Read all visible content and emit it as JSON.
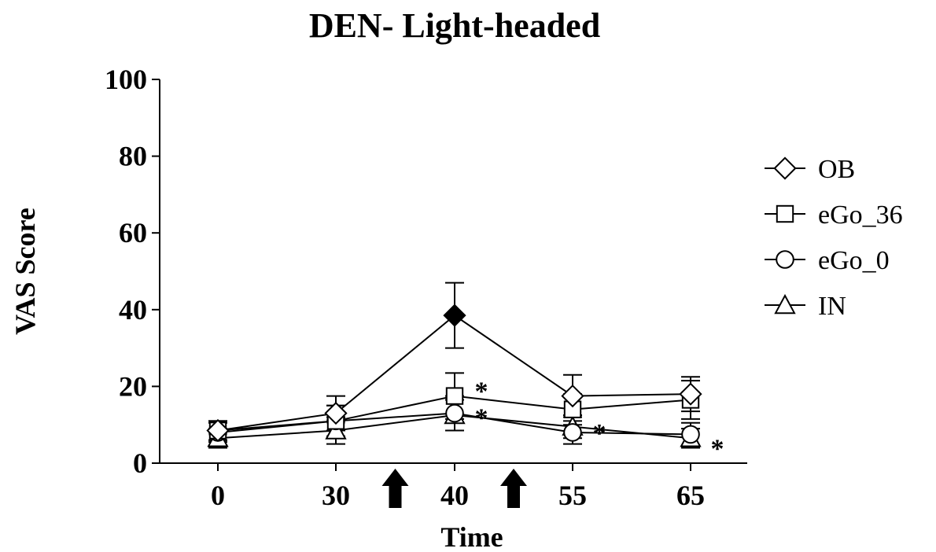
{
  "chart_data": {
    "type": "line",
    "title": "DEN- Light-headed",
    "xlabel": "Time",
    "ylabel": "VAS  Score",
    "categories": [
      "0",
      "30",
      "40",
      "55",
      "65"
    ],
    "yticks": [
      0,
      20,
      40,
      60,
      80,
      100
    ],
    "ylim": [
      0,
      100
    ],
    "grid": false,
    "legend_position": "right",
    "series": [
      {
        "name": "OB",
        "marker": "diamond",
        "values": [
          8.5,
          13,
          38.5,
          17.5,
          18
        ],
        "errors": [
          2.5,
          4.5,
          8.5,
          5.5,
          4.5
        ],
        "filled": [
          false,
          false,
          true,
          false,
          false
        ]
      },
      {
        "name": "eGo_36",
        "marker": "square",
        "values": [
          8.5,
          11,
          17.5,
          14,
          16.5
        ],
        "errors": [
          2.5,
          4,
          6,
          4,
          5
        ]
      },
      {
        "name": "eGo_0",
        "marker": "circle",
        "values": [
          8,
          11,
          13,
          8,
          7.5
        ],
        "errors": [
          2.5,
          4,
          4.5,
          3,
          3
        ]
      },
      {
        "name": "IN",
        "marker": "triangle",
        "values": [
          6.5,
          8.5,
          12.5,
          9.5,
          6.5
        ],
        "errors": [
          2.5,
          3.5,
          4,
          3,
          2.5
        ]
      }
    ],
    "annotations": [
      {
        "text": "*",
        "x_index": 2,
        "y": 21
      },
      {
        "text": "*",
        "x_index": 2,
        "y": 14
      },
      {
        "text": "*",
        "x_index": 3,
        "y": 10
      },
      {
        "text": "*",
        "x_index": 4,
        "y": 6
      }
    ],
    "arrows_between": [
      [
        1,
        2
      ],
      [
        2,
        3
      ]
    ]
  }
}
